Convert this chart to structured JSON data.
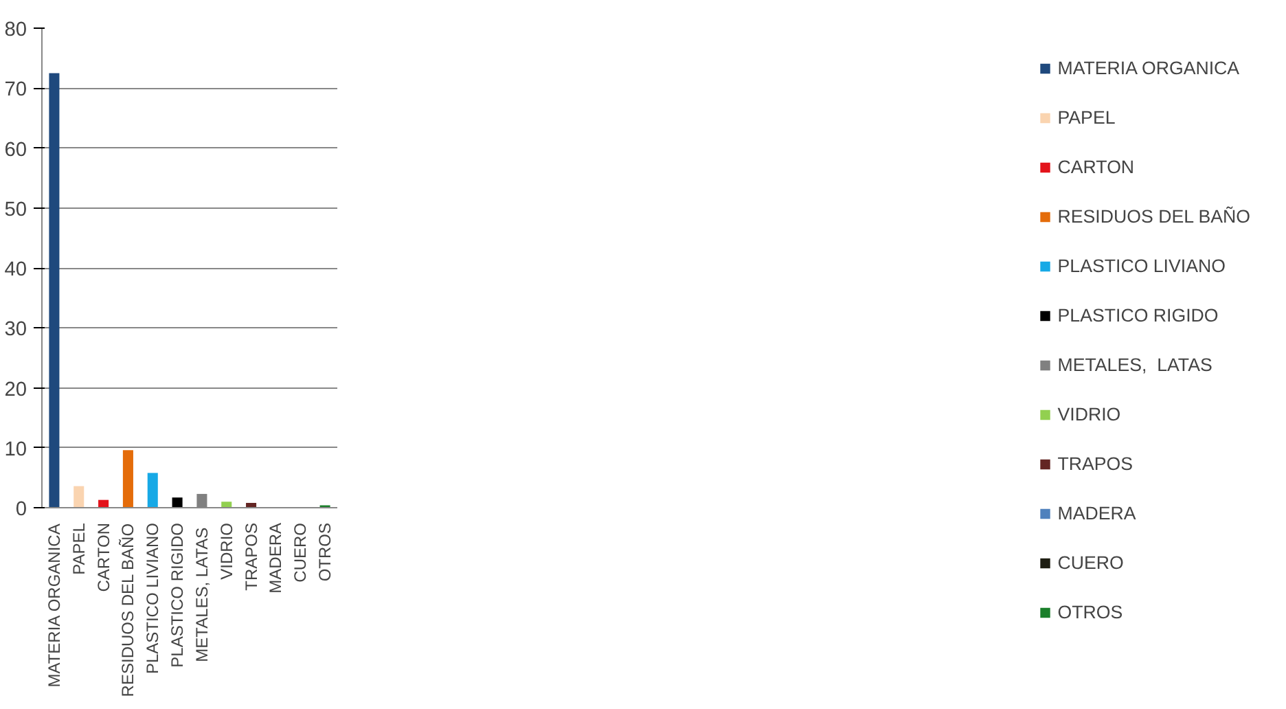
{
  "chart_data": {
    "type": "bar",
    "categories": [
      "MATERIA ORGANICA",
      "PAPEL",
      "CARTON",
      "RESIDUOS DEL BAÑO",
      "PLASTICO LIVIANO",
      "PLASTICO RIGIDO",
      "METALES,  LATAS",
      "VIDRIO",
      "TRAPOS",
      "MADERA",
      "CUERO",
      "OTROS"
    ],
    "series": [
      {
        "name": "MATERIA ORGANICA",
        "color": "#1f497d",
        "values": [
          72.5,
          null,
          null,
          null,
          null,
          null,
          null,
          null,
          null,
          null,
          null,
          null
        ]
      },
      {
        "name": "PAPEL",
        "color": "#fad4b0",
        "values": [
          null,
          3.6,
          null,
          null,
          null,
          null,
          null,
          null,
          null,
          null,
          null,
          null
        ]
      },
      {
        "name": "CARTON",
        "color": "#e3131b",
        "values": [
          null,
          null,
          1.3,
          null,
          null,
          null,
          null,
          null,
          null,
          null,
          null,
          null
        ]
      },
      {
        "name": "RESIDUOS DEL BAÑO",
        "color": "#e46c0a",
        "values": [
          null,
          null,
          null,
          9.6,
          null,
          null,
          null,
          null,
          null,
          null,
          null,
          null
        ]
      },
      {
        "name": "PLASTICO LIVIANO",
        "color": "#17a9e6",
        "values": [
          null,
          null,
          null,
          null,
          5.8,
          null,
          null,
          null,
          null,
          null,
          null,
          null
        ]
      },
      {
        "name": "PLASTICO RIGIDO",
        "color": "#000000",
        "values": [
          null,
          null,
          null,
          null,
          null,
          1.7,
          null,
          null,
          null,
          null,
          null,
          null
        ]
      },
      {
        "name": "METALES,  LATAS",
        "color": "#808080",
        "values": [
          null,
          null,
          null,
          null,
          null,
          null,
          2.3,
          null,
          null,
          null,
          null,
          null
        ]
      },
      {
        "name": "VIDRIO",
        "color": "#92d050",
        "values": [
          null,
          null,
          null,
          null,
          null,
          null,
          null,
          1.0,
          null,
          null,
          null,
          null
        ]
      },
      {
        "name": "TRAPOS",
        "color": "#632523",
        "values": [
          null,
          null,
          null,
          null,
          null,
          null,
          null,
          null,
          0.8,
          null,
          null,
          null
        ]
      },
      {
        "name": "MADERA",
        "color": "#4f81bd",
        "values": [
          null,
          null,
          null,
          null,
          null,
          null,
          null,
          null,
          null,
          0,
          null,
          null
        ]
      },
      {
        "name": "CUERO",
        "color": "#1d1d12",
        "values": [
          null,
          null,
          null,
          null,
          null,
          null,
          null,
          null,
          null,
          null,
          0,
          null
        ]
      },
      {
        "name": "OTROS",
        "color": "#1a7f2a",
        "values": [
          null,
          null,
          null,
          null,
          null,
          null,
          null,
          null,
          null,
          null,
          null,
          0.4
        ]
      }
    ],
    "ylim": [
      0,
      80
    ],
    "yticks": [
      0,
      10,
      20,
      30,
      40,
      50,
      60,
      70,
      80
    ],
    "grid": "y",
    "legend": "right"
  }
}
